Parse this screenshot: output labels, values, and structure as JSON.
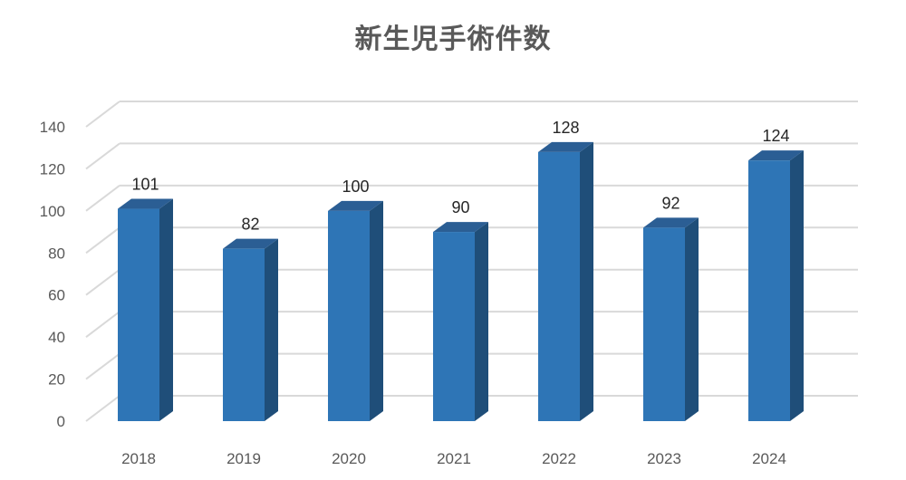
{
  "chart_data": {
    "type": "bar",
    "title": "新生児手術件数",
    "xlabel": "",
    "ylabel": "",
    "categories": [
      "2018",
      "2019",
      "2020",
      "2021",
      "2022",
      "2023",
      "2024"
    ],
    "values": [
      101,
      82,
      100,
      90,
      128,
      92,
      124
    ],
    "ylim": [
      0,
      140
    ],
    "yticks": [
      0,
      20,
      40,
      60,
      80,
      100,
      120,
      140
    ],
    "grid": true,
    "style": "3d-column",
    "colors": {
      "bar_front": "#2E75B6",
      "bar_side": "#1F4E79",
      "bar_top": "#2B5E94",
      "grid": "#D9D9D9"
    }
  }
}
